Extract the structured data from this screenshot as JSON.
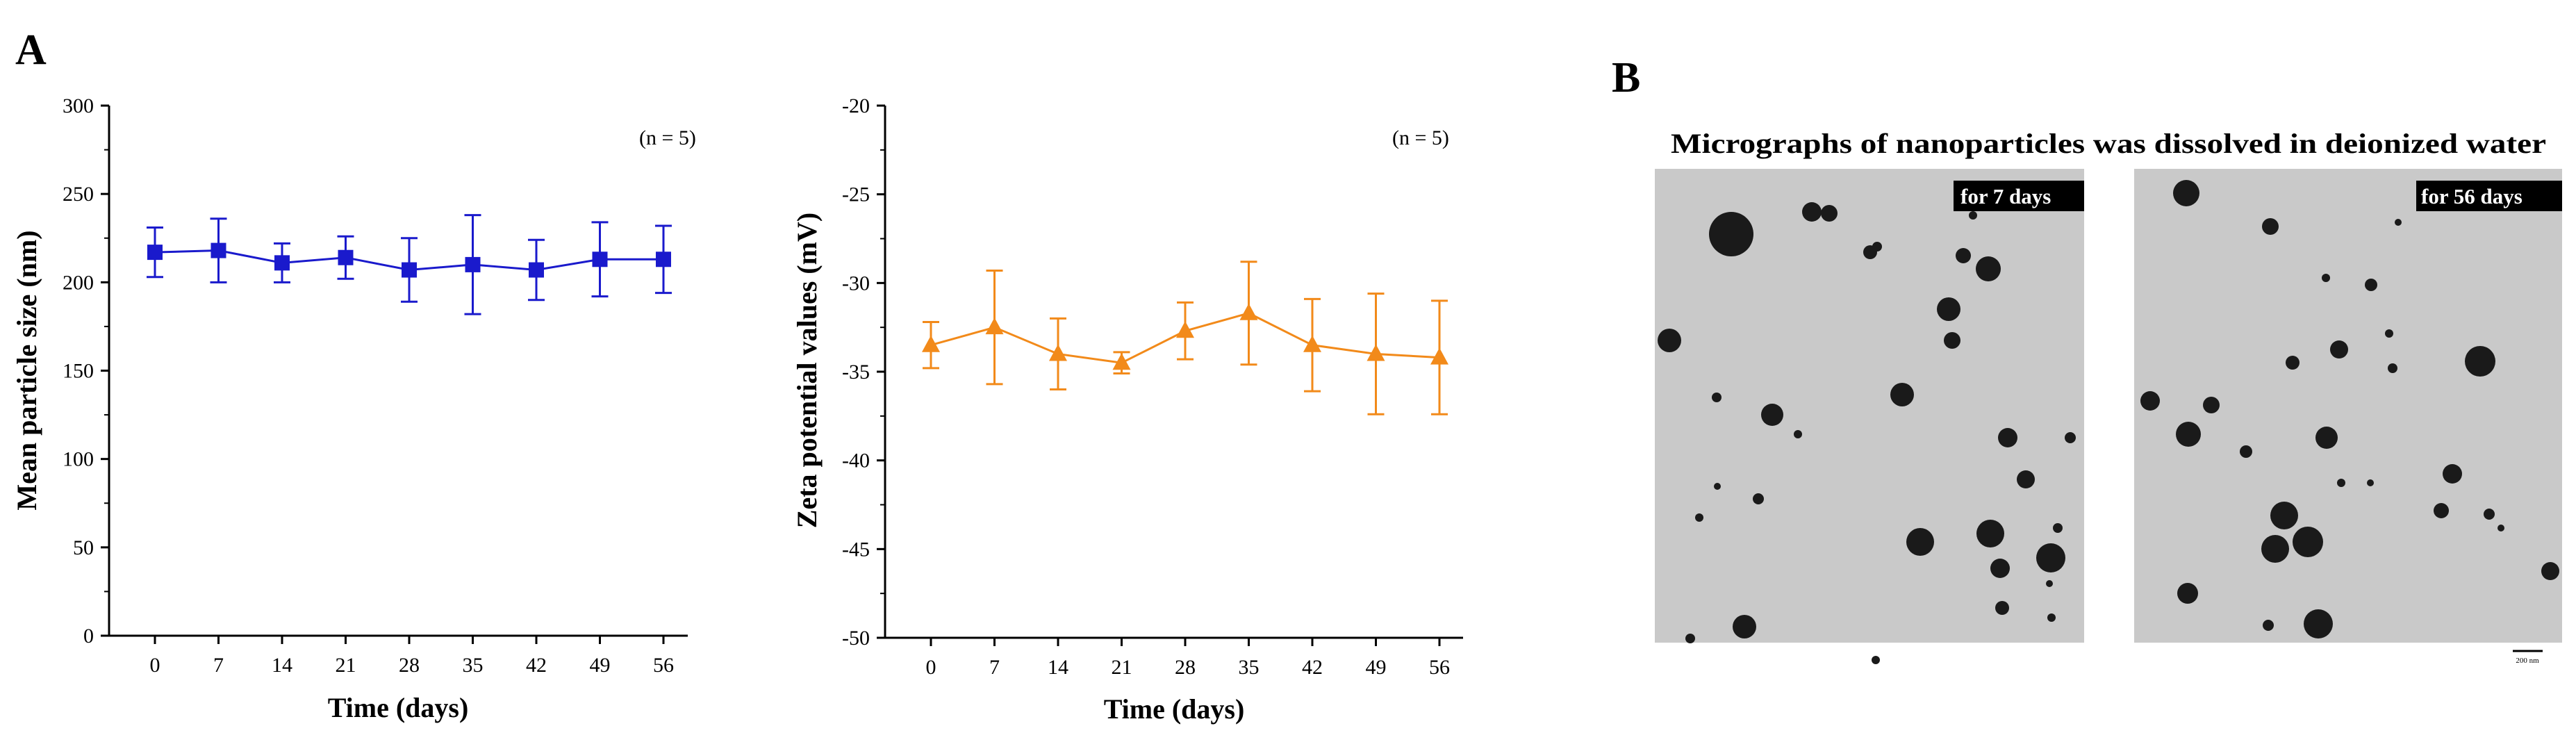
{
  "panels": {
    "a_label": "A",
    "b_label": "B"
  },
  "micrographs": {
    "title": "Micrographs of nanoparticles was dissolved in deionized water",
    "labels": [
      "for 7 days",
      "for 56 days"
    ],
    "scale_bar": "200 nm",
    "background_color": "#c9c9c9",
    "particle_color": "#1a1a1a"
  },
  "chart_data": [
    {
      "type": "line",
      "annotation": "(n = 5)",
      "xlabel": "Time (days)",
      "ylabel": "Mean particle size (nm)",
      "x": [
        0,
        7,
        14,
        21,
        28,
        35,
        42,
        49,
        56
      ],
      "xticks": [
        "0",
        "7",
        "14",
        "21",
        "28",
        "35",
        "42",
        "49",
        "56"
      ],
      "ylim": [
        0,
        300
      ],
      "yticks": [
        "0",
        "50",
        "100",
        "150",
        "200",
        "250",
        "300"
      ],
      "ytick_values": [
        0,
        50,
        100,
        150,
        200,
        250,
        300
      ],
      "marker": "square",
      "color": "#1a1acc",
      "series": [
        {
          "name": "Mean particle size",
          "values": [
            217,
            218,
            211,
            214,
            207,
            210,
            207,
            213,
            213
          ],
          "errors": [
            14,
            18,
            11,
            12,
            18,
            28,
            17,
            21,
            19
          ]
        }
      ]
    },
    {
      "type": "line",
      "annotation": "(n = 5)",
      "xlabel": "Time (days)",
      "ylabel": "Zeta potential values (mV)",
      "x": [
        0,
        7,
        14,
        21,
        28,
        35,
        42,
        49,
        56
      ],
      "xticks": [
        "0",
        "7",
        "14",
        "21",
        "28",
        "35",
        "42",
        "49",
        "56"
      ],
      "ylim": [
        -50,
        -20
      ],
      "yticks": [
        "-50",
        "-45",
        "-40",
        "-35",
        "-30",
        "-25",
        "-20"
      ],
      "ytick_values": [
        -50,
        -45,
        -40,
        -35,
        -30,
        -25,
        -20
      ],
      "marker": "triangle",
      "color": "#f28a1a",
      "series": [
        {
          "name": "Zeta potential",
          "values": [
            -33.5,
            -32.5,
            -34.0,
            -34.5,
            -32.7,
            -31.7,
            -33.5,
            -34.0,
            -34.2
          ],
          "errors": [
            1.3,
            3.2,
            2.0,
            0.6,
            1.6,
            2.9,
            2.6,
            3.4,
            3.2
          ]
        }
      ]
    }
  ]
}
